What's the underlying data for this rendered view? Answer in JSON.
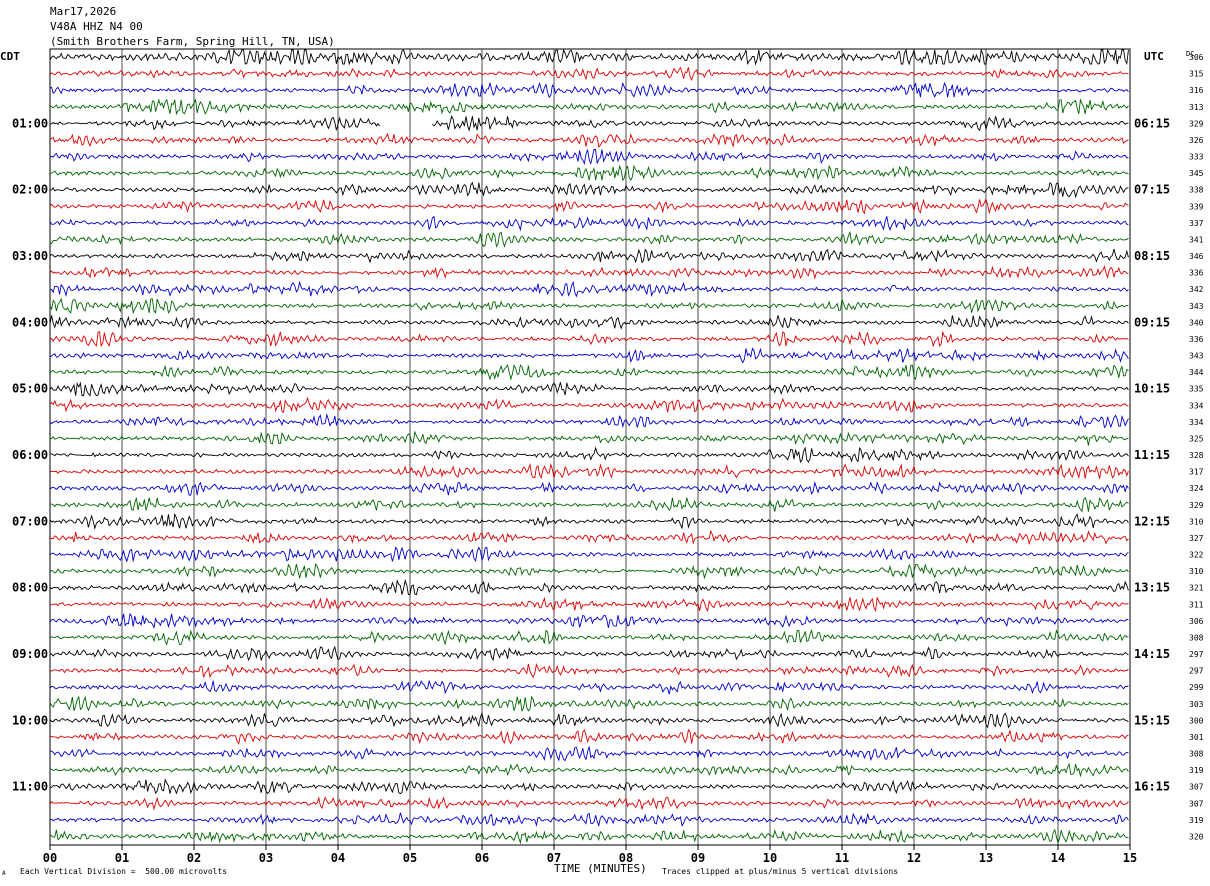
{
  "header": {
    "date": "Mar17,2026",
    "station": "V48A HHZ N4 00",
    "location": "(Smith Brothers Farm, Spring Hill, TN, USA)"
  },
  "axis_labels": {
    "left_tz": "CDT",
    "right_tz": "UTC",
    "dc_label": "DC",
    "xlabel": "TIME (MINUTES)"
  },
  "footer": {
    "scale_note": "Each Vertical Division =  500.00 microvolts",
    "clip_note": "Traces clipped at plus/minus 5 vertical divisions",
    "corner_mark": "A"
  },
  "colors": {
    "trace_cycle": [
      "#000000",
      "#dd0000",
      "#0000cc",
      "#006600"
    ],
    "grid": "#000000",
    "background": "#ffffff"
  },
  "chart_data": {
    "type": "line",
    "title": "Mar17,2026",
    "subtitle": "V48A HHZ N4 00 (Smith Brothers Farm, Spring Hill, TN, USA)",
    "xlabel": "TIME (MINUTES)",
    "ylabel": "",
    "xlim": [
      0,
      15
    ],
    "x_ticks": [
      "00",
      "01",
      "02",
      "03",
      "04",
      "05",
      "06",
      "07",
      "08",
      "09",
      "10",
      "11",
      "12",
      "13",
      "14",
      "15"
    ],
    "left_time_labels": [
      "01:00",
      "02:00",
      "03:00",
      "04:00",
      "05:00",
      "06:00",
      "07:00",
      "08:00",
      "09:00",
      "10:00",
      "11:00"
    ],
    "right_time_labels": [
      "06:15",
      "07:15",
      "08:15",
      "09:15",
      "10:15",
      "11:15",
      "12:15",
      "13:15",
      "14:15",
      "15:15",
      "16:15"
    ],
    "label_every_rows": 4,
    "label_first_row": 4,
    "dc_offsets": [
      306,
      315,
      316,
      313,
      329,
      326,
      333,
      345,
      338,
      339,
      337,
      341,
      346,
      336,
      342,
      343,
      340,
      336,
      343,
      344,
      335,
      334,
      334,
      325,
      328,
      317,
      324,
      329,
      310,
      327,
      322,
      310,
      321,
      311,
      306,
      308,
      297,
      297,
      299,
      303,
      300,
      301,
      308,
      319,
      307,
      307,
      319,
      320
    ],
    "row_count": 48,
    "data_gap_row": 4,
    "data_gap_minutes": [
      4.6,
      5.3
    ],
    "grid": true
  }
}
